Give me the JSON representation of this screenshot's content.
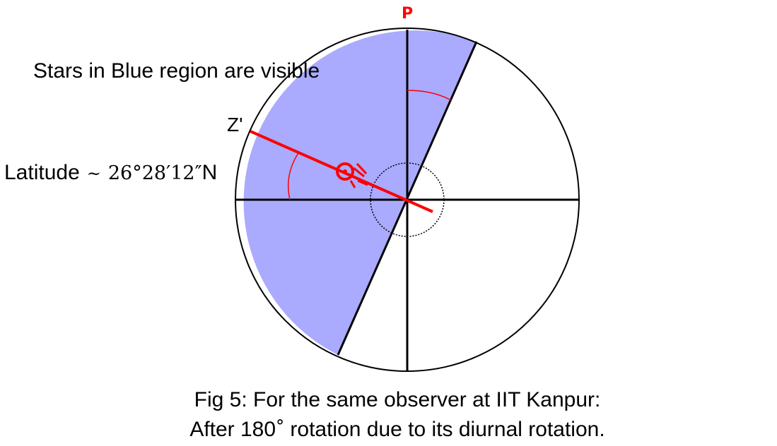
{
  "labels": {
    "pole": "P",
    "visibility_note": "Stars in Blue region are visible",
    "zenith": "Z'",
    "latitude_prefix": "Latitude",
    "latitude_tilde": "~",
    "latitude_value": "26°28′12″",
    "latitude_suffix": "N"
  },
  "caption": {
    "line1": "Fig 5: For the same observer at IIT Kanpur:",
    "line2_pre": "After 180",
    "line2_deg": "°",
    "line2_post": " rotation due to its diurnal rotation."
  },
  "colors": {
    "visible_region": "#aaaaff",
    "outline": "#000000",
    "accent": "#ff0000"
  }
}
